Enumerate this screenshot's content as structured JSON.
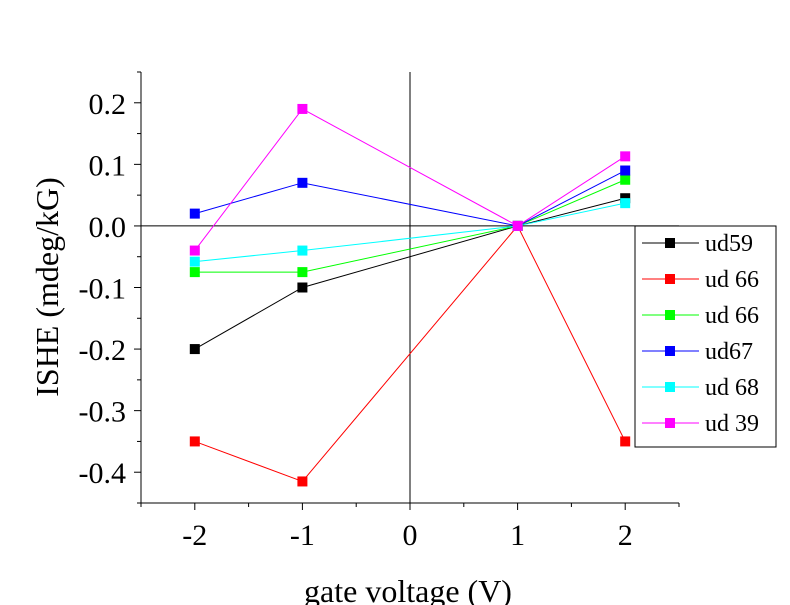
{
  "chart_data": {
    "type": "line",
    "xlabel": "gate voltage (V)",
    "ylabel": "ISHE (mdeg/kG)",
    "xlim": [
      -2.5,
      2.5
    ],
    "ylim": [
      -0.45,
      0.25
    ],
    "x_ticks": [
      -2,
      -1,
      0,
      1,
      2
    ],
    "x_tick_labels": [
      "-2",
      "-1",
      "0",
      "1",
      "2"
    ],
    "y_ticks": [
      0.2,
      0.1,
      0.0,
      -0.1,
      -0.2,
      -0.3,
      -0.4
    ],
    "y_tick_labels": [
      "0.2",
      "0.1",
      "0.0",
      "-0.1",
      "-0.2",
      "-0.3",
      "-0.4"
    ],
    "grid": false,
    "zero_lines": true,
    "legend_position": "right",
    "x": [
      -2,
      -1,
      1,
      2
    ],
    "series": [
      {
        "name": "ud59",
        "color": "#000000",
        "values": [
          -0.2,
          -0.1,
          0.0,
          0.045
        ]
      },
      {
        "name": "ud 66",
        "color": "#ff0000",
        "values": [
          -0.35,
          -0.415,
          0.0,
          -0.35
        ]
      },
      {
        "name": "ud 66",
        "color": "#00ff00",
        "values": [
          -0.075,
          -0.075,
          0.0,
          0.075
        ]
      },
      {
        "name": "ud67",
        "color": "#0000ff",
        "values": [
          0.02,
          0.07,
          0.0,
          0.09
        ]
      },
      {
        "name": "ud 68",
        "color": "#00ffff",
        "values": [
          -0.058,
          -0.04,
          0.0,
          0.037
        ]
      },
      {
        "name": "ud 39",
        "color": "#ff00ff",
        "values": [
          -0.04,
          0.19,
          0.0,
          0.113
        ]
      }
    ]
  }
}
